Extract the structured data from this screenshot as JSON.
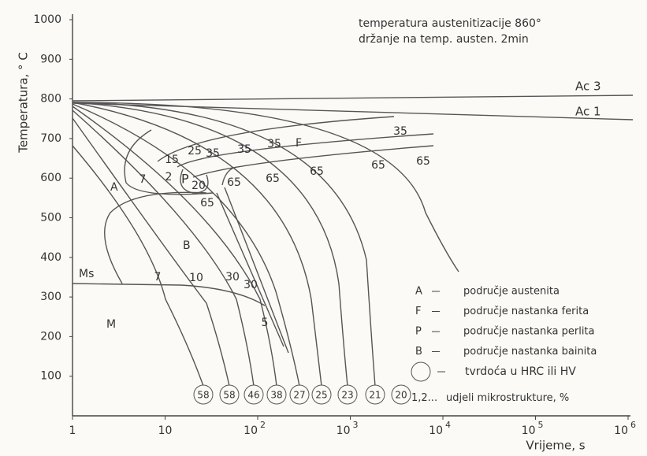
{
  "header": {
    "line1": "temperatura austenitizacije 860°",
    "line2": "držanje na temp. austen. 2min"
  },
  "axes": {
    "ylabel": "Temperatura, ° C",
    "xlabel": "Vrijeme, s",
    "yticks": [
      100,
      200,
      300,
      400,
      500,
      600,
      700,
      800,
      900,
      1000
    ],
    "xticks": [
      {
        "value": 1,
        "label": "1"
      },
      {
        "value": 10,
        "label": "10"
      },
      {
        "value": 100,
        "label": "10",
        "sup": "2"
      },
      {
        "value": 1000,
        "label": "10",
        "sup": "3"
      },
      {
        "value": 10000,
        "label": "10",
        "sup": "4"
      },
      {
        "value": 100000,
        "label": "10",
        "sup": "5"
      },
      {
        "value": 1000000,
        "label": "10",
        "sup": "6"
      }
    ]
  },
  "lines": {
    "ac3": "Ac 3",
    "ac1": "Ac 1",
    "ms": "Ms"
  },
  "regions": [
    "A",
    "P",
    "F",
    "B",
    "M"
  ],
  "fractions": [
    "7",
    "2",
    "15",
    "25",
    "35",
    "35",
    "35",
    "35",
    "65",
    "65",
    "65",
    "65",
    "65",
    "20",
    "65",
    "7",
    "10",
    "30",
    "30",
    "5"
  ],
  "hardness": [
    58,
    58,
    46,
    38,
    27,
    25,
    23,
    21,
    20
  ],
  "legend": [
    {
      "key": "A",
      "text": "područje austenita"
    },
    {
      "key": "F",
      "text": "područje nastanka ferita"
    },
    {
      "key": "P",
      "text": "područje nastanka perlita"
    },
    {
      "key": "B",
      "text": "područje nastanka bainita"
    },
    {
      "key": "20",
      "text": "tvrdoća u HRC ili HV"
    },
    {
      "key": "1,2...",
      "text": "udjeli mikrostrukture, %"
    }
  ]
}
